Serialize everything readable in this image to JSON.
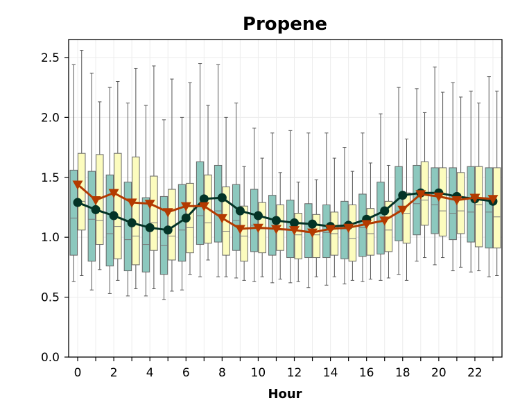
{
  "chart_data": {
    "type": "box",
    "title": "Propene",
    "xlabel": "Hour",
    "ylabel": "",
    "xlim": [
      -0.5,
      23.5
    ],
    "ylim": [
      0,
      2.65
    ],
    "x_ticks": [
      0,
      2,
      4,
      6,
      8,
      10,
      12,
      14,
      16,
      18,
      20,
      22
    ],
    "y_ticks": [
      0.0,
      0.5,
      1.0,
      1.5,
      2.0,
      2.5
    ],
    "y_tick_labels": [
      "0.0",
      "0.5",
      "1.0",
      "1.5",
      "2.0",
      "2.5"
    ],
    "grid": true,
    "legend": "none",
    "box_series": [
      {
        "color": "#8cc8be",
        "offset": -0.22,
        "boxes": [
          {
            "hour": 0,
            "whislo": 0.63,
            "q1": 0.85,
            "med": 1.16,
            "q3": 1.56,
            "whishi": 2.44
          },
          {
            "hour": 1,
            "whislo": 0.56,
            "q1": 0.8,
            "med": 1.15,
            "q3": 1.55,
            "whishi": 2.37
          },
          {
            "hour": 2,
            "whislo": 0.53,
            "q1": 0.76,
            "med": 1.03,
            "q3": 1.52,
            "whishi": 2.25
          },
          {
            "hour": 3,
            "whislo": 0.51,
            "q1": 0.72,
            "med": 0.98,
            "q3": 1.46,
            "whishi": 2.12
          },
          {
            "hour": 4,
            "whislo": 0.51,
            "q1": 0.71,
            "med": 0.94,
            "q3": 1.33,
            "whishi": 2.1
          },
          {
            "hour": 5,
            "whislo": 0.48,
            "q1": 0.69,
            "med": 0.93,
            "q3": 1.34,
            "whishi": 1.98
          },
          {
            "hour": 6,
            "whislo": 0.56,
            "q1": 0.8,
            "med": 1.06,
            "q3": 1.44,
            "whishi": 2.0
          },
          {
            "hour": 7,
            "whislo": 0.67,
            "q1": 0.94,
            "med": 1.18,
            "q3": 1.63,
            "whishi": 2.45
          },
          {
            "hour": 8,
            "whislo": 0.67,
            "q1": 0.96,
            "med": 1.22,
            "q3": 1.6,
            "whishi": 2.44
          },
          {
            "hour": 9,
            "whislo": 0.66,
            "q1": 0.89,
            "med": 1.14,
            "q3": 1.44,
            "whishi": 2.12
          },
          {
            "hour": 10,
            "whislo": 0.63,
            "q1": 0.88,
            "med": 1.1,
            "q3": 1.4,
            "whishi": 1.91
          },
          {
            "hour": 11,
            "whislo": 0.62,
            "q1": 0.85,
            "med": 1.07,
            "q3": 1.35,
            "whishi": 1.87
          },
          {
            "hour": 12,
            "whislo": 0.62,
            "q1": 0.83,
            "med": 1.06,
            "q3": 1.31,
            "whishi": 1.89
          },
          {
            "hour": 13,
            "whislo": 0.58,
            "q1": 0.83,
            "med": 1.04,
            "q3": 1.28,
            "whishi": 1.87
          },
          {
            "hour": 14,
            "whislo": 0.6,
            "q1": 0.83,
            "med": 1.04,
            "q3": 1.27,
            "whishi": 1.87
          },
          {
            "hour": 15,
            "whislo": 0.61,
            "q1": 0.82,
            "med": 1.07,
            "q3": 1.3,
            "whishi": 1.75
          },
          {
            "hour": 16,
            "whislo": 0.63,
            "q1": 0.84,
            "med": 1.08,
            "q3": 1.36,
            "whishi": 1.87
          },
          {
            "hour": 17,
            "whislo": 0.64,
            "q1": 0.86,
            "med": 1.13,
            "q3": 1.46,
            "whishi": 2.03
          },
          {
            "hour": 18,
            "whislo": 0.69,
            "q1": 0.97,
            "med": 1.22,
            "q3": 1.59,
            "whishi": 2.25
          },
          {
            "hour": 19,
            "whislo": 0.8,
            "q1": 1.02,
            "med": 1.28,
            "q3": 1.6,
            "whishi": 2.24
          },
          {
            "hour": 20,
            "whislo": 0.77,
            "q1": 1.03,
            "med": 1.27,
            "q3": 1.58,
            "whishi": 2.42
          },
          {
            "hour": 21,
            "whislo": 0.72,
            "q1": 0.98,
            "med": 1.2,
            "q3": 1.58,
            "whishi": 2.29
          },
          {
            "hour": 22,
            "whislo": 0.71,
            "q1": 0.96,
            "med": 1.21,
            "q3": 1.59,
            "whishi": 2.22
          },
          {
            "hour": 23,
            "whislo": 0.67,
            "q1": 0.91,
            "med": 1.21,
            "q3": 1.58,
            "whishi": 2.34
          }
        ]
      },
      {
        "color": "#fcfcbe",
        "offset": 0.22,
        "boxes": [
          {
            "hour": 0,
            "whislo": 0.68,
            "q1": 1.06,
            "med": 1.3,
            "q3": 1.7,
            "whishi": 2.56
          },
          {
            "hour": 1,
            "whislo": 0.73,
            "q1": 0.94,
            "med": 1.14,
            "q3": 1.69,
            "whishi": 2.13
          },
          {
            "hour": 2,
            "whislo": 0.64,
            "q1": 0.82,
            "med": 1.09,
            "q3": 1.7,
            "whishi": 2.3
          },
          {
            "hour": 3,
            "whislo": 0.57,
            "q1": 0.77,
            "med": 1.01,
            "q3": 1.67,
            "whishi": 2.41
          },
          {
            "hour": 4,
            "whislo": 0.57,
            "q1": 0.89,
            "med": 1.12,
            "q3": 1.51,
            "whishi": 2.43
          },
          {
            "hour": 5,
            "whislo": 0.55,
            "q1": 0.81,
            "med": 1.01,
            "q3": 1.4,
            "whishi": 2.32
          },
          {
            "hour": 6,
            "whislo": 0.69,
            "q1": 0.87,
            "med": 1.08,
            "q3": 1.45,
            "whishi": 2.29
          },
          {
            "hour": 7,
            "whislo": 0.81,
            "q1": 0.95,
            "med": 1.12,
            "q3": 1.52,
            "whishi": 2.1
          },
          {
            "hour": 8,
            "whislo": 0.67,
            "q1": 0.85,
            "med": 1.05,
            "q3": 1.42,
            "whishi": 2.0
          },
          {
            "hour": 9,
            "whislo": 0.64,
            "q1": 0.8,
            "med": 1.01,
            "q3": 1.26,
            "whishi": 1.59
          },
          {
            "hour": 10,
            "whislo": 0.67,
            "q1": 0.87,
            "med": 1.07,
            "q3": 1.29,
            "whishi": 1.66
          },
          {
            "hour": 11,
            "whislo": 0.65,
            "q1": 0.89,
            "med": 1.06,
            "q3": 1.27,
            "whishi": 1.54
          },
          {
            "hour": 12,
            "whislo": 0.63,
            "q1": 0.82,
            "med": 1.02,
            "q3": 1.2,
            "whishi": 1.46
          },
          {
            "hour": 13,
            "whislo": 0.67,
            "q1": 0.83,
            "med": 1.02,
            "q3": 1.19,
            "whishi": 1.48
          },
          {
            "hour": 14,
            "whislo": 0.67,
            "q1": 0.85,
            "med": 1.03,
            "q3": 1.21,
            "whishi": 1.66
          },
          {
            "hour": 15,
            "whislo": 0.64,
            "q1": 0.8,
            "med": 0.99,
            "q3": 1.27,
            "whishi": 1.55
          },
          {
            "hour": 16,
            "whislo": 0.65,
            "q1": 0.85,
            "med": 1.03,
            "q3": 1.24,
            "whishi": 1.62
          },
          {
            "hour": 17,
            "whislo": 0.66,
            "q1": 0.88,
            "med": 1.06,
            "q3": 1.3,
            "whishi": 1.6
          },
          {
            "hour": 18,
            "whislo": 0.64,
            "q1": 0.95,
            "med": 1.2,
            "q3": 1.37,
            "whishi": 1.82
          },
          {
            "hour": 19,
            "whislo": 0.83,
            "q1": 1.1,
            "med": 1.31,
            "q3": 1.63,
            "whishi": 2.04
          },
          {
            "hour": 20,
            "whislo": 0.83,
            "q1": 1.01,
            "med": 1.22,
            "q3": 1.58,
            "whishi": 2.21
          },
          {
            "hour": 21,
            "whislo": 0.75,
            "q1": 1.03,
            "med": 1.22,
            "q3": 1.54,
            "whishi": 2.17
          },
          {
            "hour": 22,
            "whislo": 0.72,
            "q1": 0.92,
            "med": 1.27,
            "q3": 1.59,
            "whishi": 2.12
          },
          {
            "hour": 23,
            "whislo": 0.68,
            "q1": 0.91,
            "med": 1.17,
            "q3": 1.58,
            "whishi": 2.22
          }
        ]
      }
    ],
    "line_series": [
      {
        "color": "#033326",
        "marker": "circle",
        "x": [
          0,
          1,
          2,
          3,
          4,
          5,
          6,
          7,
          8,
          9,
          10,
          11,
          12,
          13,
          14,
          15,
          16,
          17,
          18,
          19,
          20,
          21,
          22,
          23
        ],
        "values": [
          1.29,
          1.23,
          1.18,
          1.12,
          1.08,
          1.06,
          1.16,
          1.32,
          1.33,
          1.22,
          1.18,
          1.14,
          1.12,
          1.11,
          1.09,
          1.1,
          1.15,
          1.22,
          1.35,
          1.37,
          1.37,
          1.34,
          1.32,
          1.3
        ]
      },
      {
        "color": "#b33a00",
        "marker": "triangle-down",
        "x": [
          0,
          1,
          2,
          3,
          4,
          5,
          6,
          7,
          8,
          9,
          10,
          11,
          12,
          13,
          14,
          15,
          16,
          17,
          18,
          19,
          20,
          21,
          22,
          23
        ],
        "values": [
          1.44,
          1.31,
          1.37,
          1.29,
          1.28,
          1.21,
          1.26,
          1.26,
          1.16,
          1.07,
          1.08,
          1.07,
          1.06,
          1.04,
          1.07,
          1.08,
          1.11,
          1.14,
          1.23,
          1.36,
          1.34,
          1.31,
          1.33,
          1.32
        ]
      }
    ]
  }
}
